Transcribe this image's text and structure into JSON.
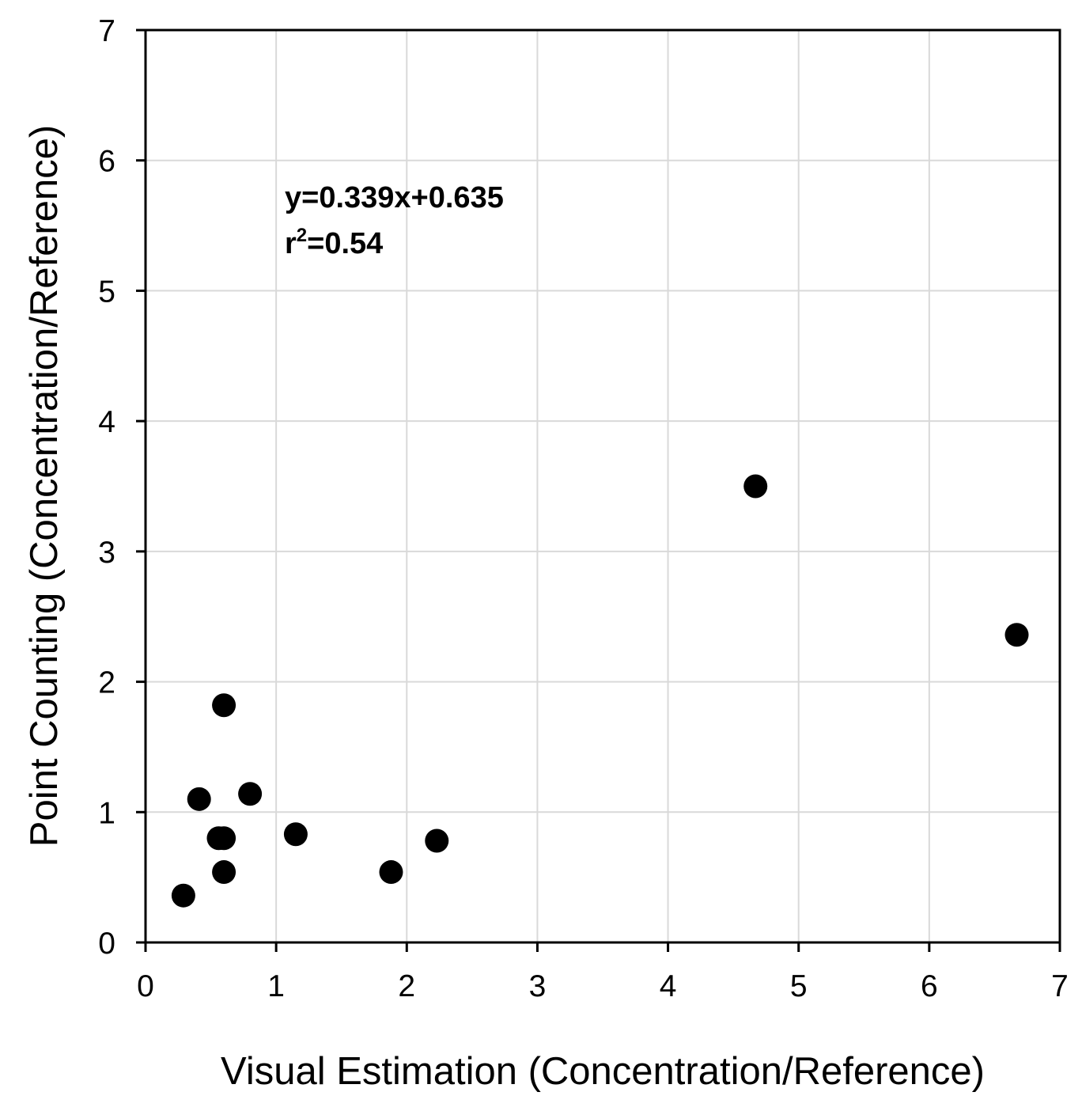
{
  "chart_data": {
    "type": "scatter",
    "title": "",
    "xlabel": "Visual Estimation (Concentration/Reference)",
    "ylabel": "Point Counting (Concentration/Reference)",
    "xlim": [
      0,
      7
    ],
    "ylim": [
      0,
      7
    ],
    "xticks": [
      "0",
      "1",
      "2",
      "3",
      "4",
      "5",
      "6",
      "7"
    ],
    "yticks": [
      "0",
      "1",
      "2",
      "3",
      "4",
      "5",
      "6",
      "7"
    ],
    "grid": true,
    "legend": "none",
    "annotation": {
      "line1": "y=0.339x+0.635",
      "line2_prefix": "r",
      "line2_sup": "2",
      "line2_suffix": "=0.54"
    },
    "series": [
      {
        "marker_color": "#000000",
        "points": [
          {
            "x": 0.29,
            "y": 0.36
          },
          {
            "x": 0.41,
            "y": 1.1
          },
          {
            "x": 0.56,
            "y": 0.8
          },
          {
            "x": 0.6,
            "y": 0.8
          },
          {
            "x": 0.6,
            "y": 0.54
          },
          {
            "x": 0.6,
            "y": 1.82
          },
          {
            "x": 0.8,
            "y": 1.14
          },
          {
            "x": 1.15,
            "y": 0.83
          },
          {
            "x": 1.88,
            "y": 0.54
          },
          {
            "x": 2.23,
            "y": 0.78
          },
          {
            "x": 4.67,
            "y": 3.5
          },
          {
            "x": 6.67,
            "y": 2.36
          }
        ]
      }
    ],
    "grid_color": "#d9d9d9",
    "axis_color": "#000000"
  }
}
